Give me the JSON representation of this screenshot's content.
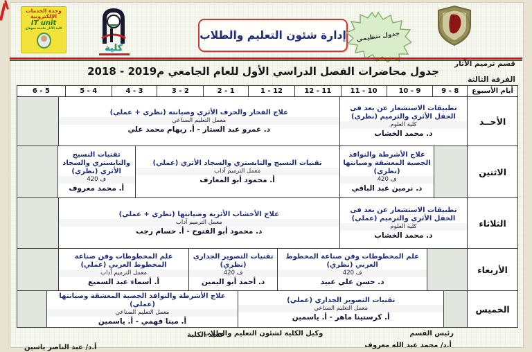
{
  "banner": {
    "it_badge": {
      "line1": "وحدة الخدمات",
      "line2": "الإلكترونية",
      "line3": "IT unit",
      "line4": "كلية الآثار جامعة سوهاج"
    },
    "college_logo_word": "كلية",
    "dept_box_label": "إدارة شئون التعليم والطلاب",
    "stamp_label": "جدول تنظيمي"
  },
  "meta": {
    "department": "قسم ترميم الآثار",
    "grade": "الفرقة الثالثة"
  },
  "title": {
    "main": "جدول محاضرات الفصل الدراسي الأول للعام الجامعي",
    "years": "2018 - 2019م"
  },
  "table": {
    "days_header": "أيام الأسبوع",
    "time_slots": [
      "9 - 8",
      "10 - 9",
      "11 - 10",
      "12 - 11",
      "1 - 12",
      "2 - 1",
      "3 - 2",
      "4 - 3",
      "5 - 4",
      "6 - 5"
    ],
    "rows": [
      {
        "day": "الأحــد",
        "cells": [
          {
            "kind": "course",
            "title": "تطبيقات الاستشعار عن بعد فى الحقل الأثري والترميم (نظري)",
            "loc": "كلية العلوم",
            "who": "د. محمد الخشاب"
          },
          {
            "kind": "course",
            "title": "علاج الفخار والخزف الأثري وصيانته (نظري + عملي)",
            "loc": "معمل التعليم الصناعي",
            "who": "د. عمرو عبد الستار  -  أ. ريهام محمد علي"
          },
          {
            "kind": "empty"
          }
        ]
      },
      {
        "day": "الاثنين",
        "cells": [
          {
            "kind": "empty"
          },
          {
            "kind": "course",
            "title": "علاج الأشرطة والنوافذ الجصية المعشقة وصيانتها (نظري)",
            "loc": "ف 420",
            "who": "د. نرمين عبد الباقي"
          },
          {
            "kind": "course",
            "title": "تقنيات النسيج والتابستري والسجاد الأثري (عملي)",
            "loc": "معمل الترميم آداب",
            "who": "أ. محمود أبو المعارف"
          },
          {
            "kind": "course",
            "title": "تقنيات النسيج والتابستري والسجاد الأثري (نظري)",
            "loc": "ف 420",
            "who": "أ. محمد معروف"
          },
          {
            "kind": "empty"
          }
        ]
      },
      {
        "day": "الثلاثاء",
        "cells": [
          {
            "kind": "course",
            "title": "تطبيقات الاستشعار عن بعد فى الحقل الأثري والترميم (عملي)",
            "loc": "كلية العلوم",
            "who": "د. محمد الخشاب"
          },
          {
            "kind": "course",
            "title": "علاج الأخشاب الأثرية وصيانتها (نظري + عملي)",
            "loc": "معمل الترميم آداب",
            "who": "د. محمود أبو الفتوح  -  أ. حسام رجب"
          },
          {
            "kind": "empty"
          }
        ]
      },
      {
        "day": "الأربعاء",
        "cells": [
          {
            "kind": "empty"
          },
          {
            "kind": "course",
            "title": "علم المخطوطات وفن صناعة المخطوط العربي (نظري)",
            "loc": "ف 420",
            "who": "د. حسن علي عبيد"
          },
          {
            "kind": "course",
            "title": "تقنيات التصوير الجداري (نظري)",
            "loc": "ف 420",
            "who": "د. أحمد أبو اليمين"
          },
          {
            "kind": "course",
            "title": "علم المخطوطات وفن صناعة المخطوط العربي (عملي)",
            "loc": "معمل الترميم آداب",
            "who": "أ. أسماء عبد السميع"
          },
          {
            "kind": "empty"
          }
        ]
      },
      {
        "day": "الخميس",
        "cells": [
          {
            "kind": "empty"
          },
          {
            "kind": "course",
            "title": "تقنيات التصوير الجداري (عملي)",
            "loc": "معمل التعليم الصناعي",
            "who": "أ. كرستينا ماهر  -  أ. ياسمين"
          },
          {
            "kind": "course",
            "title": "علاج الأشرطة والنوافذ الجصية المعشقة وصيانتها (عملي)",
            "loc": "معمل التعليم الصناعي",
            "who": "أ. مينا فهمي  -  أ. ياسمين"
          },
          {
            "kind": "empty"
          }
        ]
      }
    ]
  },
  "footer": {
    "head_dept_title": "رئيس القسم",
    "head_dept_name": "أ.د/ محمد عبد الله معروف",
    "vice_dean_title": "وكيل الكلية لشئون التعليم والطلاب",
    "dean_title": "عميد الكلية",
    "dean_name": "أ.د/ عبد الناصر ياسين"
  },
  "colors": {
    "accent_red": "#d40f0f",
    "course_blue": "#1f2d7a",
    "stamp_green": "#86b06a",
    "badge_yellow": "#f2e23a"
  }
}
